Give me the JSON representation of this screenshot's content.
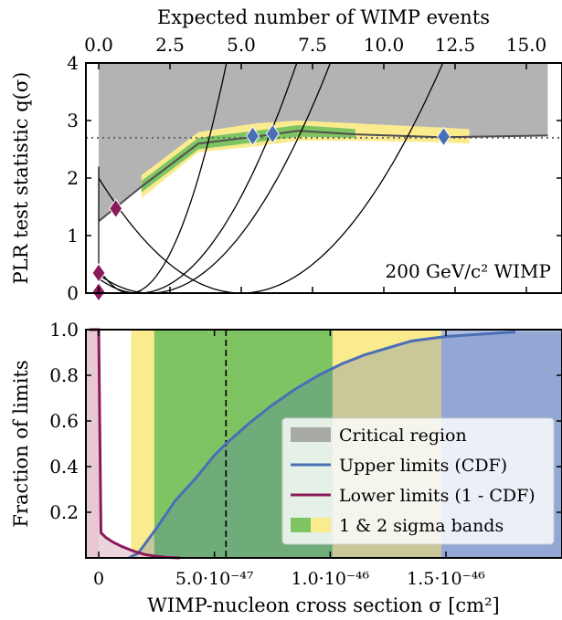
{
  "chart_data": [
    {
      "type": "line",
      "title": "",
      "ylabel": "PLR test statistic q(σ)",
      "top_xlabel": "Expected number of WIMP events",
      "top_xticks": [
        "0.0",
        "2.5",
        "5.0",
        "7.5",
        "10.0",
        "12.5",
        "15.0"
      ],
      "top_xlim": [
        0,
        15.75
      ],
      "yticks": [
        "0",
        "1",
        "2",
        "3",
        "4"
      ],
      "ylim": [
        0,
        4
      ],
      "annotation": "200 GeV/c² WIMP",
      "critical_line": {
        "x": [
          0,
          1.5,
          3.5,
          5.5,
          7,
          9,
          12,
          15.75
        ],
        "y": [
          1.25,
          1.85,
          2.6,
          2.72,
          2.82,
          2.76,
          2.71,
          2.74
        ]
      },
      "reference_line_y": 2.7,
      "critical_region_x": [
        0,
        1.5,
        3.5,
        5.5,
        7,
        9,
        12,
        15.75
      ],
      "band_1sigma": {
        "x": [
          1.5,
          3.5,
          5.5,
          7,
          9
        ],
        "lower": [
          1.75,
          2.5,
          2.62,
          2.72,
          2.7
        ],
        "upper": [
          1.95,
          2.7,
          2.82,
          2.92,
          2.85
        ]
      },
      "band_2sigma": {
        "x": [
          1.5,
          3.5,
          5.5,
          7,
          9,
          12,
          13
        ],
        "lower": [
          1.65,
          2.45,
          2.55,
          2.65,
          2.65,
          2.62,
          2.6
        ],
        "upper": [
          2.05,
          2.8,
          2.95,
          3.0,
          2.95,
          2.88,
          2.85
        ]
      },
      "parabolas": [
        {
          "min_x": 1.1,
          "curvature": 0.35
        },
        {
          "min_x": 1.4,
          "curvature": 0.13
        },
        {
          "min_x": 1.8,
          "curvature": 0.1
        },
        {
          "min_x": 5.0,
          "curvature": 0.08
        }
      ],
      "upper_markers": [
        {
          "x": 5.4,
          "y": 2.73
        },
        {
          "x": 6.1,
          "y": 2.77
        },
        {
          "x": 12.1,
          "y": 2.72
        }
      ],
      "lower_markers": [
        {
          "x": 0.6,
          "y": 1.47
        },
        {
          "x": 0.0,
          "y": 0.35
        },
        {
          "x": 0.0,
          "y": 0.02
        }
      ],
      "colors": {
        "critical": "#b3b3b3",
        "upper": "#4a6fb5",
        "lower": "#8b1a5a",
        "band1": "#7fc463",
        "band2": "#fbeb8f",
        "line": "#505050"
      }
    },
    {
      "type": "line",
      "xlabel": "WIMP-nucleon cross section σ [cm²]",
      "ylabel": "Fraction of limits",
      "xticks": [
        "0",
        "5.0·10⁻⁴⁷",
        "1.0·10⁻⁴⁶",
        "1.5·10⁻⁴⁶"
      ],
      "xtick_values": [
        0,
        5e-47,
        1e-46,
        1.5e-46
      ],
      "xlim": [
        -4e-48,
        1.8e-46
      ],
      "yticks": [
        "0.2",
        "0.4",
        "0.6",
        "0.8",
        "1.0"
      ],
      "ylim": [
        0,
        1
      ],
      "vline_x": 5.5e-47,
      "critical_region_x": [
        1.9e-46,
        1.8e-46
      ],
      "band_1sigma_x": [
        2.4e-47,
        1.01e-46
      ],
      "band_2sigma_x": [
        1.4e-47,
        1.48e-46
      ],
      "upper_cdf": {
        "x": [
          1.3e-47,
          1.7e-47,
          2.5e-47,
          3.3e-47,
          4.2e-47,
          5e-47,
          5.5e-47,
          6.5e-47,
          7.5e-47,
          8.5e-47,
          9.5e-47,
          1.05e-46,
          1.15e-46,
          1.25e-46,
          1.35e-46,
          1.5e-46,
          1.65e-46,
          1.8e-46
        ],
        "y": [
          0.0,
          0.02,
          0.13,
          0.25,
          0.35,
          0.45,
          0.5,
          0.59,
          0.67,
          0.74,
          0.8,
          0.85,
          0.89,
          0.92,
          0.95,
          0.97,
          0.98,
          0.99
        ]
      },
      "lower_cdf": {
        "x": [
          -4e-48,
          0,
          1e-48,
          3e-48,
          6e-48,
          1e-47,
          1.5e-47,
          2e-47,
          2.5e-47,
          3e-47,
          3.5e-47
        ],
        "y": [
          1.0,
          1.0,
          0.11,
          0.09,
          0.07,
          0.05,
          0.03,
          0.015,
          0.007,
          0.002,
          0.0
        ]
      },
      "legend": [
        {
          "label": "Critical region",
          "kind": "patch",
          "color": "#a8aba3"
        },
        {
          "label": "Upper limits (CDF)",
          "kind": "line",
          "color": "#4a6fb5"
        },
        {
          "label": "Lower limits (1 - CDF)",
          "kind": "line",
          "color": "#8b1a5a"
        },
        {
          "label": "1 & 2 sigma bands",
          "kind": "bands",
          "color": "#7fc463",
          "color2": "#fbeb8f"
        }
      ],
      "legend_position": "lower-right",
      "colors": {
        "critical": "#aebde0",
        "upper": "#4a6fb5",
        "lower": "#8b1a5a",
        "lower_fill": "#e7c9d6",
        "band1": "#7fc463",
        "band2": "#fbeb8f"
      }
    }
  ]
}
